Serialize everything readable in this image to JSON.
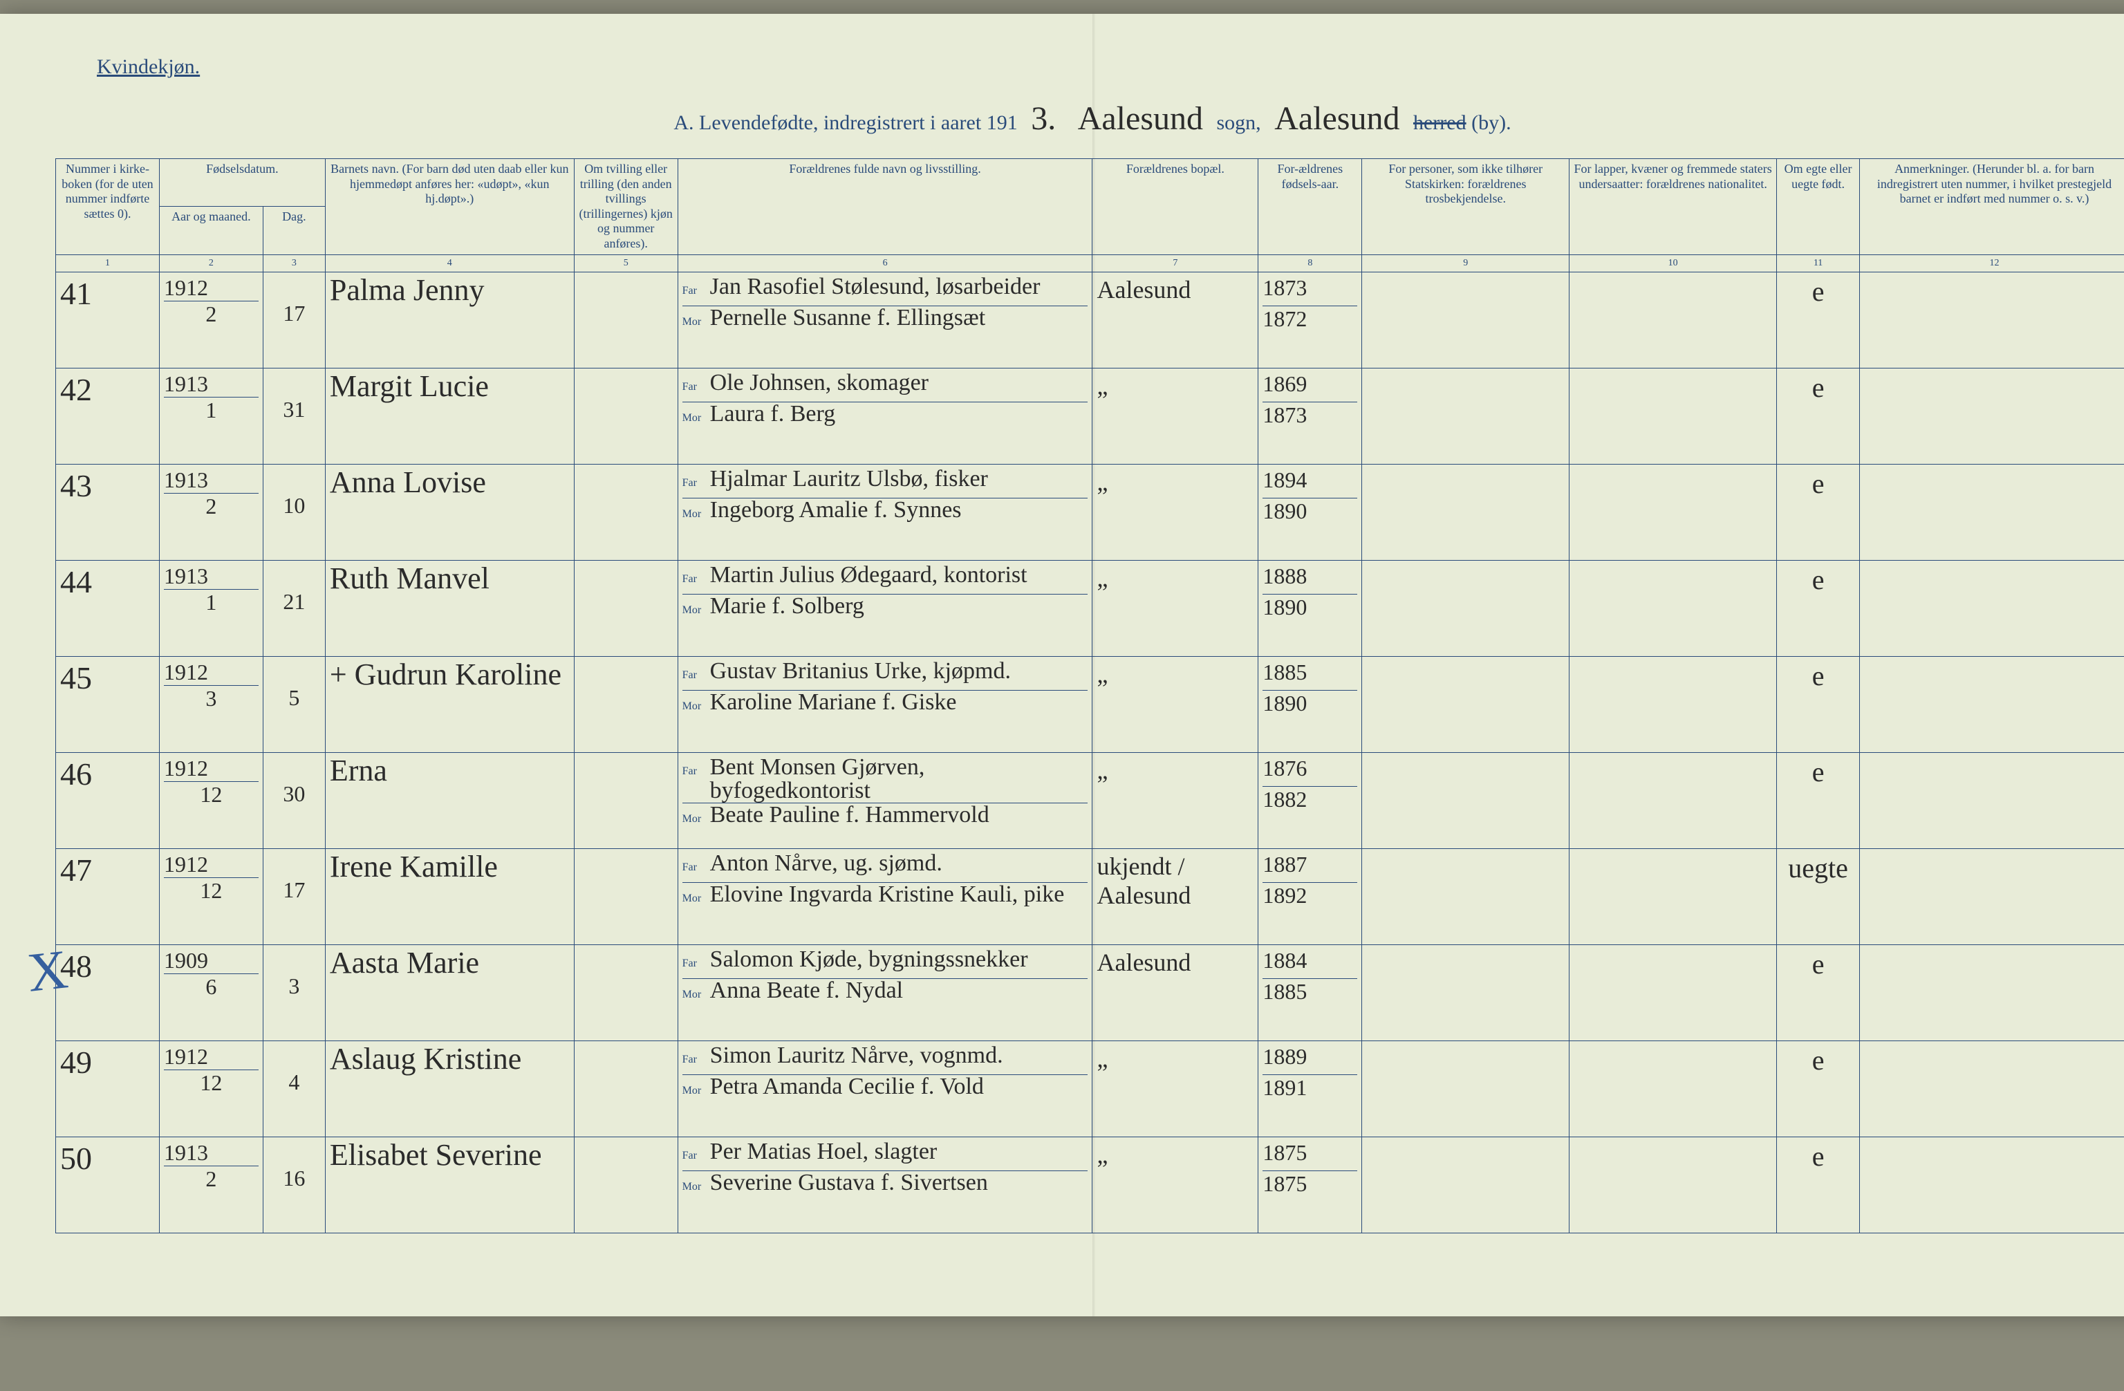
{
  "header": {
    "gender_label": "Kvindekjøn.",
    "title_prefix": "A. Levendefødte, indregistrert i aaret 191",
    "year_digit": "3.",
    "sogn_value": "Aalesund",
    "sogn_label": "sogn,",
    "by_value": "Aalesund",
    "herred_struck": "herred",
    "by_suffix": "(by)."
  },
  "columns": {
    "c1": "Nummer i kirke-boken (for de uten nummer indførte sættes 0).",
    "c2_group": "Fødselsdatum.",
    "c2a": "Aar og maaned.",
    "c2b": "Dag.",
    "c4": "Barnets navn.\n(For barn død uten daab eller kun hjemmedøpt anføres her: «udøpt», «kun hj.døpt».)",
    "c5": "Om tvilling eller trilling (den anden tvillings (trillingernes) kjøn og nummer anføres).",
    "c6": "Forældrenes fulde navn og livsstilling.",
    "c7": "Forældrenes bopæl.",
    "c8": "For-ældrenes fødsels-aar.",
    "c9": "For personer, som ikke tilhører Statskirken: forældrenes trosbekjendelse.",
    "c10": "For lapper, kvæner og fremmede staters undersaatter: forældrenes nationalitet.",
    "c11": "Om egte eller uegte født.",
    "c12": "Anmerkninger.\n(Herunder bl. a. for barn indregistrert uten nummer, i hvilket prestegjeld barnet er indført med nummer o. s. v.)"
  },
  "colnums": [
    "1",
    "2",
    "3",
    "4",
    "5",
    "6",
    "7",
    "8",
    "9",
    "10",
    "11",
    "12"
  ],
  "far_label": "Far",
  "mor_label": "Mor",
  "rows": [
    {
      "num": "41",
      "year": "1912",
      "month": "2",
      "day": "17",
      "child": "Palma Jenny",
      "far": "Jan Rasofiel Stølesund, løsarbeider",
      "mor": "Pernelle Susanne f. Ellingsæt",
      "resid": "Aalesund",
      "fyear": "1873",
      "myear": "1872",
      "egte": "e"
    },
    {
      "num": "42",
      "year": "1913",
      "month": "1",
      "day": "31",
      "child": "Margit Lucie",
      "far": "Ole Johnsen, skomager",
      "mor": "Laura f. Berg",
      "resid": "„",
      "fyear": "1869",
      "myear": "1873",
      "egte": "e"
    },
    {
      "num": "43",
      "year": "1913",
      "month": "2",
      "day": "10",
      "child": "Anna Lovise",
      "far": "Hjalmar Lauritz Ulsbø, fisker",
      "mor": "Ingeborg Amalie f. Synnes",
      "resid": "„",
      "fyear": "1894",
      "myear": "1890",
      "egte": "e"
    },
    {
      "num": "44",
      "year": "1913",
      "month": "1",
      "day": "21",
      "child": "Ruth Manvel",
      "far": "Martin Julius Ødegaard, kontorist",
      "mor": "Marie f. Solberg",
      "resid": "„",
      "fyear": "1888",
      "myear": "1890",
      "egte": "e"
    },
    {
      "num": "45",
      "year": "1912",
      "month": "3",
      "day": "5",
      "child": "+ Gudrun Karoline",
      "far": "Gustav Britanius Urke, kjøpmd.",
      "mor": "Karoline Mariane f. Giske",
      "resid": "„",
      "fyear": "1885",
      "myear": "1890",
      "egte": "e"
    },
    {
      "num": "46",
      "year": "1912",
      "month": "12",
      "day": "30",
      "child": "Erna",
      "far": "Bent Monsen Gjørven, byfogedkontorist",
      "mor": "Beate Pauline f. Hammervold",
      "resid": "„",
      "fyear": "1876",
      "myear": "1882",
      "egte": "e"
    },
    {
      "num": "47",
      "year": "1912",
      "month": "12",
      "day": "17",
      "child": "Irene Kamille",
      "far": "Anton Nårve, ug. sjømd.",
      "mor": "Elovine Ingvarda Kristine Kauli, pike",
      "resid": "ukjendt / Aalesund",
      "fyear": "1887",
      "myear": "1892",
      "egte": "uegte"
    },
    {
      "num": "48",
      "year": "1909",
      "month": "6",
      "day": "3",
      "child": "Aasta Marie",
      "far": "Salomon Kjøde, bygningssnekker",
      "mor": "Anna Beate f. Nydal",
      "resid": "Aalesund",
      "fyear": "1884",
      "myear": "1885",
      "egte": "e"
    },
    {
      "num": "49",
      "year": "1912",
      "month": "12",
      "day": "4",
      "child": "Aslaug Kristine",
      "far": "Simon Lauritz Nårve, vognmd.",
      "mor": "Petra Amanda Cecilie f. Vold",
      "resid": "„",
      "fyear": "1889",
      "myear": "1891",
      "egte": "e"
    },
    {
      "num": "50",
      "year": "1913",
      "month": "2",
      "day": "16",
      "child": "Elisabet Severine",
      "far": "Per Matias Hoel, slagter",
      "mor": "Severine Gustava f. Sivertsen",
      "resid": "„",
      "fyear": "1875",
      "myear": "1875",
      "egte": "e"
    }
  ],
  "colors": {
    "paper": "#e8ecd8",
    "rule": "#2a4b7a",
    "ink": "#2b2b2b"
  }
}
